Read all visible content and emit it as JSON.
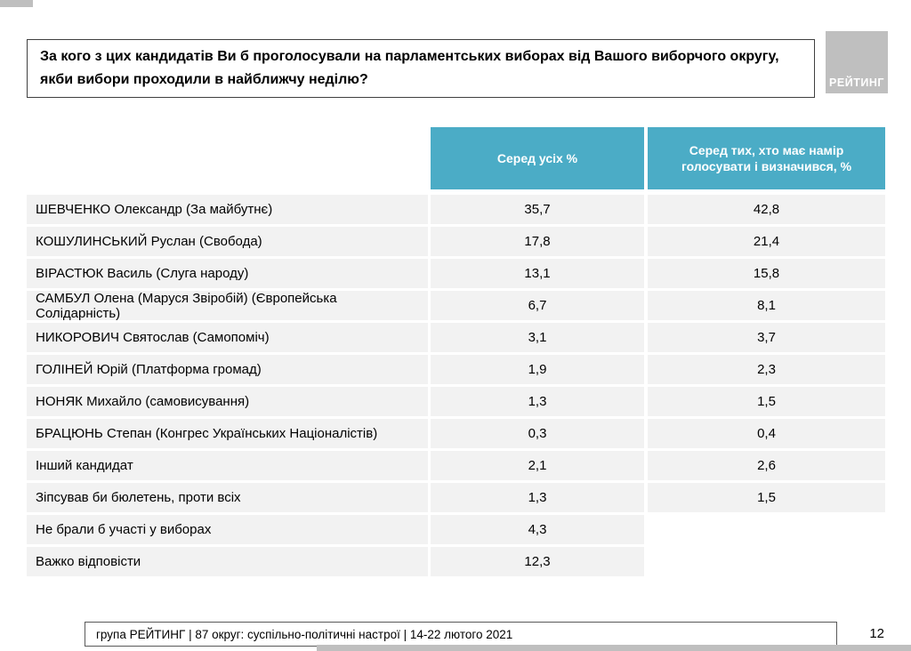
{
  "header": {
    "question": "За кого з цих кандидатів Ви б проголосували на парламентських виборах від Вашого виборчого округу, якби вибори проходили в найближчу неділю?",
    "logo_text": "РЕЙТИНГ"
  },
  "chart_data": {
    "type": "table",
    "title": "За кого з цих кандидатів Ви б проголосували на парламентських виборах від Вашого виборчого округу, якби вибори проходили в найближчу неділю?",
    "columns": [
      "",
      "Серед усіх %",
      "Серед тих, хто має намір голосувати і визначився, %"
    ],
    "rows": [
      {
        "label": "ШЕВЧЕНКО Олександр (За майбутнє)",
        "all": "35,7",
        "decided": "42,8"
      },
      {
        "label": "КОШУЛИНСЬКИЙ Руслан (Свобода)",
        "all": "17,8",
        "decided": "21,4"
      },
      {
        "label": "ВІРАСТЮК Василь (Слуга народу)",
        "all": "13,1",
        "decided": "15,8"
      },
      {
        "label": "САМБУЛ Олена (Маруся Звіробій) (Європейська Солідарність)",
        "all": "6,7",
        "decided": "8,1"
      },
      {
        "label": "НИКОРОВИЧ Святослав (Самопоміч)",
        "all": "3,1",
        "decided": "3,7"
      },
      {
        "label": "ГОЛІНЕЙ Юрій (Платформа громад)",
        "all": "1,9",
        "decided": "2,3"
      },
      {
        "label": "НОНЯК Михайло (самовисування)",
        "all": "1,3",
        "decided": "1,5"
      },
      {
        "label": "БРАЦЮНЬ Степан (Конгрес Українських Націоналістів)",
        "all": "0,3",
        "decided": "0,4"
      },
      {
        "label": "Інший кандидат",
        "all": "2,1",
        "decided": "2,6"
      },
      {
        "label": "Зіпсував би бюлетень, проти всіх",
        "all": "1,3",
        "decided": "1,5"
      },
      {
        "label": "Не брали б участі у виборах",
        "all": "4,3",
        "decided": ""
      },
      {
        "label": "Важко відповісти",
        "all": "12,3",
        "decided": ""
      }
    ],
    "legend_position": "none",
    "grid": false
  },
  "footer": {
    "text": "група РЕЙТИНГ  | 87 округ: суспільно-політичні настрої | 14-22 лютого 2021",
    "page_number": "12"
  },
  "colors": {
    "header_fill": "#4BACC6",
    "row_fill": "#F2F2F2",
    "logo_fill": "#BFBFBF"
  }
}
